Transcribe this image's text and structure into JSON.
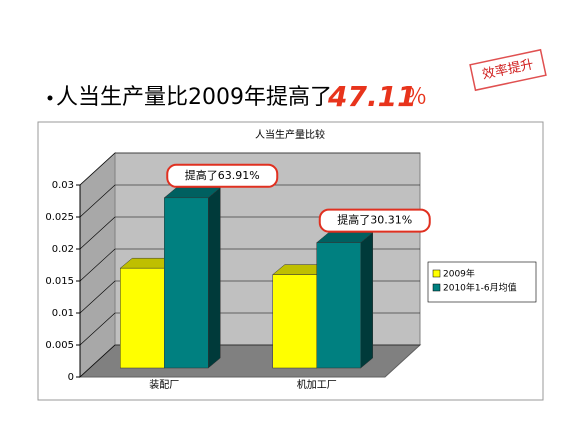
{
  "slide": {
    "heading": "人当生产量比2009年提高了",
    "highlight_number": "47.11",
    "highlight_unit": "％",
    "stamp": "效率提升"
  },
  "chart_data": {
    "type": "bar3d",
    "title": "人当生产量比较",
    "categories": [
      "装配厂",
      "机加工厂"
    ],
    "series": [
      {
        "name": "2009年",
        "color": "#ffff00",
        "values": [
          0.017,
          0.016
        ]
      },
      {
        "name": "2010年1-6月均值",
        "color": "#008080",
        "values": [
          0.028,
          0.021
        ]
      }
    ],
    "ylim": [
      0,
      0.03
    ],
    "yticks": [
      0,
      0.005,
      0.01,
      0.015,
      0.02,
      0.025,
      0.03
    ],
    "grid": true,
    "legend": "right",
    "annotations": [
      "提高了63.91%",
      "提高了30.31%"
    ]
  }
}
